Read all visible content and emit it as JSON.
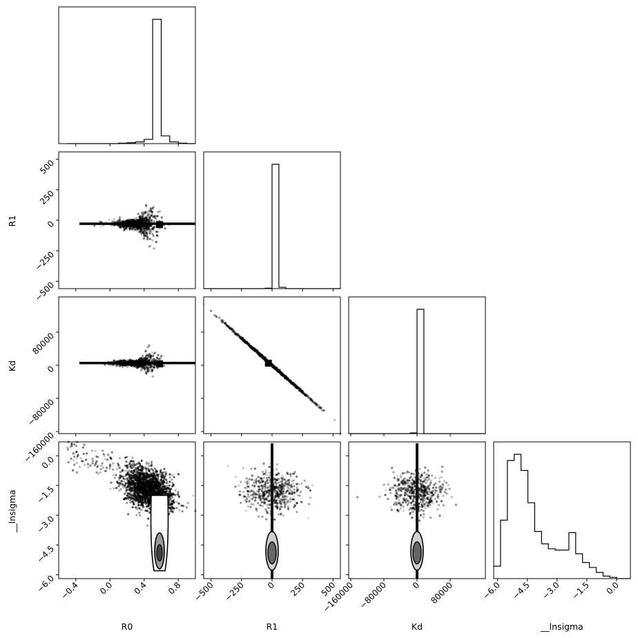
{
  "chart_data": {
    "type": "corner",
    "parameters": [
      "R0",
      "R1",
      "Kd",
      "__lnsigma"
    ],
    "axes": [
      {
        "name": "R0",
        "label": "R0",
        "range": [
          -0.6,
          1.0
        ],
        "ticks": [
          -0.4,
          0.0,
          0.4,
          0.8
        ],
        "tick_labels": [
          "−0.4",
          "0.0",
          "0.4",
          "0.8"
        ]
      },
      {
        "name": "R1",
        "label": "R1",
        "range": [
          -560,
          560
        ],
        "ticks": [
          -500,
          -250,
          0,
          250,
          500
        ],
        "tick_labels": [
          "−500",
          "−250",
          "0",
          "250",
          "500"
        ]
      },
      {
        "name": "Kd",
        "label": "Kd",
        "range": [
          -165000,
          165000
        ],
        "ticks": [
          -160000,
          -80000,
          0,
          80000
        ],
        "tick_labels": [
          "−160000",
          "−80000",
          "0",
          "80000"
        ]
      },
      {
        "name": "__lnsigma",
        "label": "__lnsigma",
        "range": [
          -6.2,
          0.7
        ],
        "ticks": [
          -6.0,
          -4.5,
          -3.0,
          -1.5,
          0.0
        ],
        "tick_labels": [
          "−6.0",
          "−4.5",
          "−3.0",
          "−1.5",
          "0.0"
        ]
      }
    ],
    "histograms": [
      {
        "param": "R0",
        "bin_edges": [
          -0.5,
          -0.4,
          -0.3,
          -0.2,
          -0.1,
          0.0,
          0.1,
          0.2,
          0.3,
          0.4,
          0.5,
          0.6,
          0.7,
          0.8,
          0.9,
          1.0
        ],
        "counts": [
          0,
          0,
          0,
          0,
          0,
          0,
          1,
          2,
          4,
          10,
          290,
          18,
          4,
          1,
          0
        ]
      },
      {
        "param": "R1",
        "bin_edges": [
          -560,
          -504,
          -448,
          -392,
          -336,
          -280,
          -224,
          -168,
          -112,
          -56,
          0,
          56,
          112,
          168,
          224,
          280,
          336,
          392,
          448,
          504,
          560
        ],
        "counts": [
          0,
          0,
          0,
          0,
          0,
          0,
          0,
          0,
          0,
          1,
          282,
          3,
          0,
          0,
          0,
          0,
          0,
          0,
          0,
          0
        ]
      },
      {
        "param": "Kd",
        "bin_edges": [
          -165000,
          -148500,
          -132000,
          -115500,
          -99000,
          -82500,
          -66000,
          -49500,
          -33000,
          -16500,
          0,
          16500,
          33000,
          49500,
          66000,
          82500,
          99000,
          115500,
          132000,
          148500,
          165000
        ],
        "counts": [
          0,
          0,
          0,
          0,
          0,
          0,
          0,
          0,
          0,
          1,
          178,
          0,
          0,
          0,
          0,
          0,
          0,
          0,
          0,
          0
        ]
      },
      {
        "param": "__lnsigma",
        "bin_edges": [
          -6.2,
          -5.855,
          -5.51,
          -5.165,
          -4.82,
          -4.475,
          -4.13,
          -3.785,
          -3.44,
          -3.095,
          -2.75,
          -2.405,
          -2.06,
          -1.715,
          -1.37,
          -1.025,
          -0.68,
          -0.335,
          0.01,
          0.355,
          0.7
        ],
        "counts": [
          10,
          47,
          95,
          100,
          87,
          61,
          38,
          28,
          24,
          23,
          23,
          37,
          20,
          13,
          9,
          5,
          2,
          1,
          0,
          0
        ]
      }
    ],
    "scatter_panels": [
      {
        "x": "R0",
        "y": "R1",
        "best_fit": [
          0.58,
          -30
        ]
      },
      {
        "x": "R0",
        "y": "Kd",
        "best_fit": [
          0.58,
          5000
        ]
      },
      {
        "x": "R1",
        "y": "Kd",
        "best_fit": [
          -30,
          5000
        ]
      },
      {
        "x": "R0",
        "y": "__lnsigma"
      },
      {
        "x": "R1",
        "y": "__lnsigma"
      },
      {
        "x": "Kd",
        "y": "__lnsigma"
      }
    ],
    "grid": false,
    "legend": "none"
  }
}
